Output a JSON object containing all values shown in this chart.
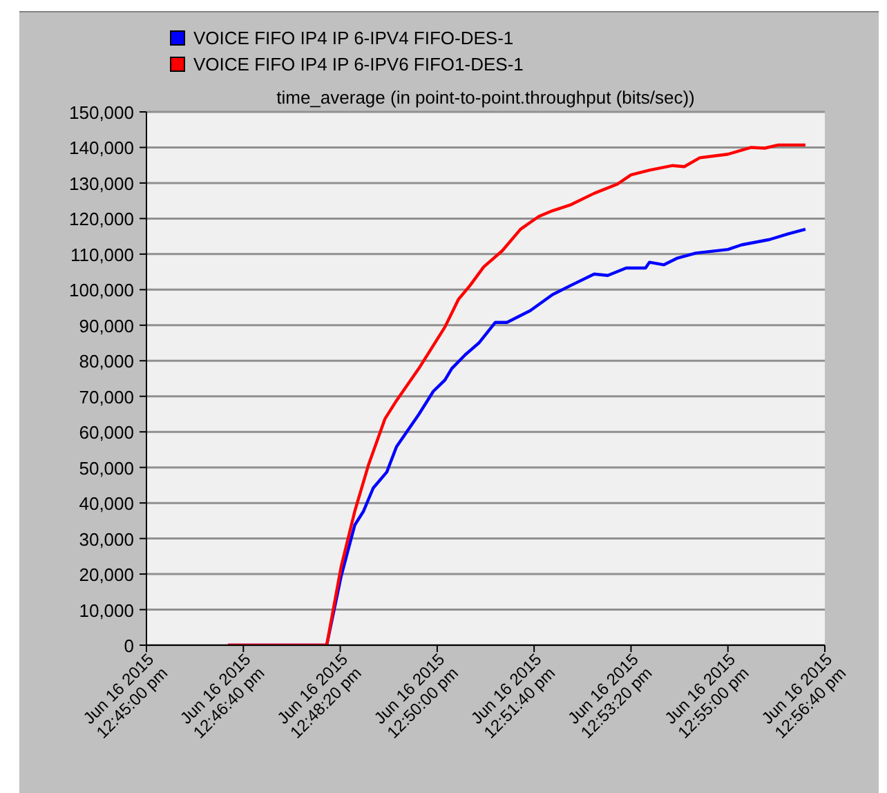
{
  "chart_data": {
    "type": "line",
    "title": "time_average (in point-to-point.throughput (bits/sec))",
    "legend": "top left",
    "grid": "y",
    "marker": "none",
    "line_style": "solid",
    "xlim": [
      "2015-06-16T12:45:00",
      "2015-06-16T12:56:40"
    ],
    "xticks": [
      {
        "value": "2015-06-16T12:45:00",
        "label": "Jun 16 2015 12:45:00 pm"
      },
      {
        "value": "2015-06-16T12:46:40",
        "label": "Jun 16 2015 12:46:40 pm"
      },
      {
        "value": "2015-06-16T12:48:20",
        "label": "Jun 16 2015 12:48:20 pm"
      },
      {
        "value": "2015-06-16T12:50:00",
        "label": "Jun 16 2015 12:50:00 pm"
      },
      {
        "value": "2015-06-16T12:51:40",
        "label": "Jun 16 2015 12:51:40 pm"
      },
      {
        "value": "2015-06-16T12:53:20",
        "label": "Jun 16 2015 12:53:20 pm"
      },
      {
        "value": "2015-06-16T12:55:00",
        "label": "Jun 16 2015 12:55:00 pm"
      },
      {
        "value": "2015-06-16T12:56:40",
        "label": "Jun 16 2015 12:56:40 pm"
      }
    ],
    "ylim": [
      0,
      150000
    ],
    "yticks": [
      {
        "value": 0,
        "label": "0"
      },
      {
        "value": 10000,
        "label": "10,000"
      },
      {
        "value": 20000,
        "label": "20,000"
      },
      {
        "value": 30000,
        "label": "30,000"
      },
      {
        "value": 40000,
        "label": "40,000"
      },
      {
        "value": 50000,
        "label": "50,000"
      },
      {
        "value": 60000,
        "label": "60,000"
      },
      {
        "value": 70000,
        "label": "70,000"
      },
      {
        "value": 80000,
        "label": "80,000"
      },
      {
        "value": 90000,
        "label": "90,000"
      },
      {
        "value": 100000,
        "label": "100,000"
      },
      {
        "value": 110000,
        "label": "110,000"
      },
      {
        "value": 120000,
        "label": "120,000"
      },
      {
        "value": 130000,
        "label": "130,000"
      },
      {
        "value": 140000,
        "label": "140,000"
      },
      {
        "value": 150000,
        "label": "150,000"
      }
    ],
    "series": [
      {
        "name": "VOICE FIFO IP4 IP 6-IPV4 FIFO-DES-1",
        "color": "#0000ff",
        "x": [
          "2015-06-16T12:46:24",
          "2015-06-16T12:48:06",
          "2015-06-16T12:48:21",
          "2015-06-16T12:48:35",
          "2015-06-16T12:48:44",
          "2015-06-16T12:48:54",
          "2015-06-16T12:49:08",
          "2015-06-16T12:49:18",
          "2015-06-16T12:49:41",
          "2015-06-16T12:49:56",
          "2015-06-16T12:50:08",
          "2015-06-16T12:50:15",
          "2015-06-16T12:50:29",
          "2015-06-16T12:50:43",
          "2015-06-16T12:51:00",
          "2015-06-16T12:51:12",
          "2015-06-16T12:51:36",
          "2015-06-16T12:51:59",
          "2015-06-16T12:52:18",
          "2015-06-16T12:52:42",
          "2015-06-16T12:52:56",
          "2015-06-16T12:53:15",
          "2015-06-16T12:53:35",
          "2015-06-16T12:53:39",
          "2015-06-16T12:53:54",
          "2015-06-16T12:54:08",
          "2015-06-16T12:54:27",
          "2015-06-16T12:55:00",
          "2015-06-16T12:55:14",
          "2015-06-16T12:55:43",
          "2015-06-16T12:56:02",
          "2015-06-16T12:56:20"
        ],
        "values": [
          0,
          0,
          19500,
          33800,
          37700,
          44200,
          48700,
          55800,
          64900,
          71400,
          74600,
          77800,
          81700,
          85000,
          90800,
          90800,
          94100,
          98600,
          101200,
          104400,
          104000,
          106100,
          106100,
          107700,
          107000,
          108900,
          110300,
          111300,
          112600,
          114100,
          115700,
          117000
        ]
      },
      {
        "name": "VOICE FIFO IP4 IP 6-IPV6 FIFO1-DES-1",
        "color": "#ff0000",
        "x": [
          "2015-06-16T12:46:24",
          "2015-06-16T12:48:06",
          "2015-06-16T12:48:21",
          "2015-06-16T12:48:35",
          "2015-06-16T12:48:49",
          "2015-06-16T12:49:06",
          "2015-06-16T12:49:18",
          "2015-06-16T12:49:41",
          "2015-06-16T12:49:56",
          "2015-06-16T12:50:08",
          "2015-06-16T12:50:22",
          "2015-06-16T12:50:34",
          "2015-06-16T12:50:48",
          "2015-06-16T12:51:07",
          "2015-06-16T12:51:26",
          "2015-06-16T12:51:45",
          "2015-06-16T12:51:59",
          "2015-06-16T12:52:18",
          "2015-06-16T12:52:42",
          "2015-06-16T12:53:06",
          "2015-06-16T12:53:20",
          "2015-06-16T12:53:39",
          "2015-06-16T12:54:03",
          "2015-06-16T12:54:15",
          "2015-06-16T12:54:31",
          "2015-06-16T12:55:00",
          "2015-06-16T12:55:24",
          "2015-06-16T12:55:38",
          "2015-06-16T12:55:52",
          "2015-06-16T12:56:20"
        ],
        "values": [
          0,
          0,
          22200,
          37700,
          50600,
          63600,
          68800,
          77800,
          84300,
          89500,
          97300,
          101200,
          106400,
          110900,
          117000,
          120600,
          122200,
          123900,
          127100,
          129700,
          132300,
          133600,
          134900,
          134600,
          137100,
          138100,
          140000,
          139800,
          140700,
          140700
        ]
      }
    ]
  }
}
